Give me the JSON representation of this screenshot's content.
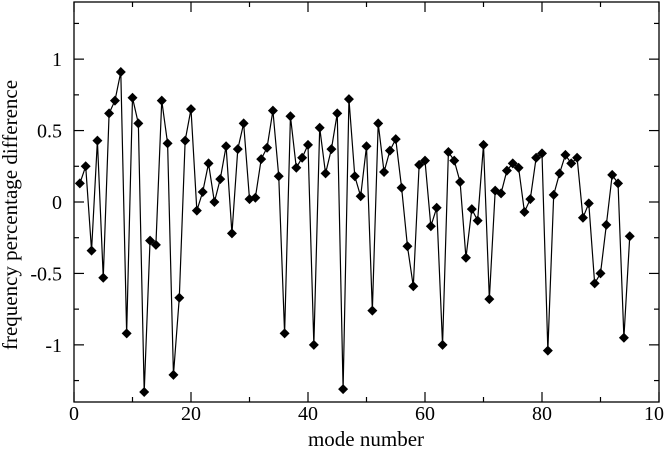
{
  "chart_data": {
    "type": "line",
    "title": "",
    "xlabel": "mode number",
    "ylabel": "frequency percentage difference",
    "xlim": [
      0,
      100
    ],
    "ylim": [
      -1.4,
      1.4
    ],
    "x_ticks": [
      0,
      20,
      40,
      60,
      80,
      100
    ],
    "x_tick_labels": [
      "0",
      "20",
      "40",
      "60",
      "80",
      "100"
    ],
    "y_ticks": [
      -1,
      -0.5,
      0,
      0.5,
      1
    ],
    "y_tick_labels": [
      "-1",
      "-0.5",
      "0",
      "0.5",
      "1"
    ],
    "grid": false,
    "legend": "none",
    "marker": "diamond",
    "line_color": "#000000",
    "series": [
      {
        "x": [
          1,
          2,
          3,
          4,
          5,
          6,
          7,
          8,
          9,
          10,
          11,
          12,
          13,
          14,
          15,
          16,
          17,
          18,
          19,
          20,
          21,
          22,
          23,
          24,
          25,
          26,
          27,
          28,
          29,
          30,
          31,
          32,
          33,
          34,
          35,
          36,
          37,
          38,
          39,
          40,
          41,
          42,
          43,
          44,
          45,
          46,
          47,
          48,
          49,
          50,
          51,
          52,
          53,
          54,
          55,
          56,
          57,
          58,
          59,
          60,
          61,
          62,
          63,
          64,
          65,
          66,
          67,
          68,
          69,
          70,
          71,
          72,
          73,
          74,
          75,
          76,
          77,
          78,
          79,
          80,
          81,
          82,
          83,
          84,
          85,
          86,
          87,
          88,
          89,
          90,
          91,
          92,
          93,
          94,
          95
        ],
        "y": [
          0.13,
          0.25,
          -0.34,
          0.43,
          -0.53,
          0.62,
          0.71,
          0.91,
          -0.92,
          0.73,
          0.55,
          -1.33,
          -0.27,
          -0.3,
          0.71,
          0.41,
          -1.21,
          -0.67,
          0.43,
          0.65,
          -0.06,
          0.07,
          0.27,
          0.0,
          0.16,
          0.39,
          -0.22,
          0.37,
          0.55,
          0.02,
          0.03,
          0.3,
          0.38,
          0.64,
          0.18,
          -0.92,
          0.6,
          0.24,
          0.31,
          0.4,
          -1.0,
          0.52,
          0.2,
          0.37,
          0.62,
          -1.31,
          0.72,
          0.18,
          0.04,
          0.39,
          -0.76,
          0.55,
          0.21,
          0.36,
          0.44,
          0.1,
          -0.31,
          -0.59,
          0.26,
          0.29,
          -0.17,
          -0.04,
          -1.0,
          0.35,
          0.29,
          0.14,
          -0.39,
          -0.05,
          -0.13,
          0.4,
          -0.68,
          0.08,
          0.06,
          0.22,
          0.27,
          0.24,
          -0.07,
          0.02,
          0.31,
          0.34,
          -1.04,
          0.05,
          0.2,
          0.33,
          0.27,
          0.31,
          -0.11,
          -0.01,
          -0.57,
          -0.5,
          -0.16,
          0.19,
          0.13,
          -0.95,
          -0.24
        ]
      }
    ]
  }
}
